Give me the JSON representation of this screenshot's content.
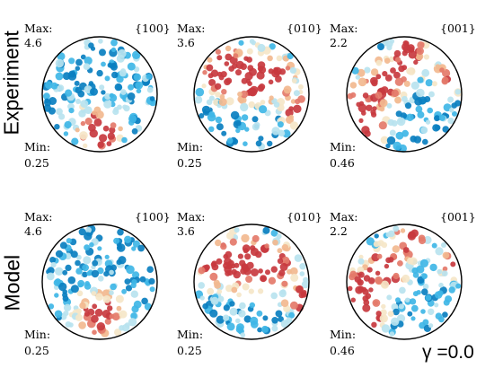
{
  "rows": [
    {
      "label": "Experiment",
      "panels": [
        {
          "family": "{100}",
          "max_label": "Max:",
          "max_value": "4.6",
          "min_label": "Min:",
          "min_value": "0.25",
          "hotspot": "bottom-center"
        },
        {
          "family": "{010}",
          "max_label": "Max:",
          "max_value": "3.6",
          "min_label": "Min:",
          "min_value": "0.25",
          "hotspot": "upper-band"
        },
        {
          "family": "{001}",
          "max_label": "Max:",
          "max_value": "2.2",
          "min_label": "Min:",
          "min_value": "0.46",
          "hotspot": "left-right-edges"
        }
      ]
    },
    {
      "label": "Model",
      "panels": [
        {
          "family": "{100}",
          "max_label": "Max:",
          "max_value": "4.6",
          "min_label": "Min:",
          "min_value": "0.25",
          "hotspot": "bottom-center"
        },
        {
          "family": "{010}",
          "max_label": "Max:",
          "max_value": "3.6",
          "min_label": "Min:",
          "min_value": "0.25",
          "hotspot": "upper-band"
        },
        {
          "family": "{001}",
          "max_label": "Max:",
          "max_value": "2.2",
          "min_label": "Min:",
          "min_value": "0.46",
          "hotspot": "left-right-edges"
        }
      ]
    }
  ],
  "gamma_label": "γ =0.0",
  "colors": {
    "low": "#0a7fc0",
    "low_mid": "#3fb6e6",
    "mid": "#b9e3ef",
    "neutral": "#f5e6c8",
    "mid_high": "#f2b98f",
    "high": "#e47a6a",
    "peak": "#c83a3f",
    "outline": "#000000"
  }
}
